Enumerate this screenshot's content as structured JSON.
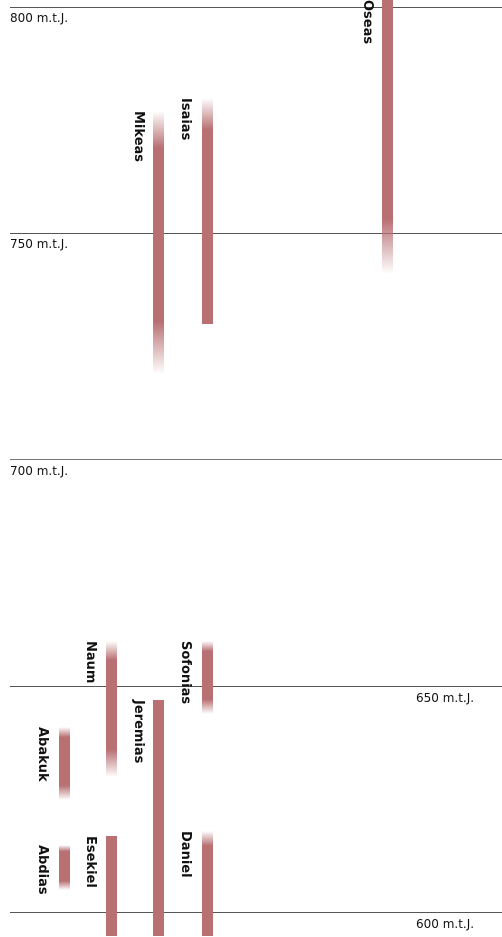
{
  "year_labels": {
    "y800": "800 m.t.J.",
    "y750": "750 m.t.J.",
    "y700": "700 m.t.J.",
    "y650": "650 m.t.J.",
    "y600": "600 m.t.J."
  },
  "colors": {
    "bar": "#b87073",
    "gridline": "#555555",
    "text": "#111111"
  },
  "chart_data": {
    "type": "timeline",
    "axis": {
      "direction": "descending-years",
      "ticks": [
        800,
        750,
        700,
        650,
        600
      ],
      "tick_suffix": "m.t.J."
    },
    "prophets": [
      {
        "name": "Oseas",
        "start": 802,
        "end": 741,
        "fade_end": true
      },
      {
        "name": "Isaias",
        "start": 780,
        "end": 730,
        "fade_start": true
      },
      {
        "name": "Mikeas",
        "start": 777,
        "end": 719,
        "fade_start": true,
        "fade_end": true
      },
      {
        "name": "Naum",
        "start": 660,
        "end": 630,
        "fade_start": true,
        "fade_end": true
      },
      {
        "name": "Sofonias",
        "start": 660,
        "end": 644,
        "fade_start": true,
        "fade_end": true
      },
      {
        "name": "Jeremias",
        "start": 647,
        "end": 595
      },
      {
        "name": "Abakuk",
        "start": 641,
        "end": 625,
        "fade_start": true,
        "fade_end": true
      },
      {
        "name": "Abdias",
        "start": 615,
        "end": 605,
        "fade_start": true,
        "fade_end": true
      },
      {
        "name": "Esekiel",
        "start": 617,
        "end": 595
      },
      {
        "name": "Daniel",
        "start": 618,
        "end": 595,
        "fade_start": true
      }
    ]
  }
}
